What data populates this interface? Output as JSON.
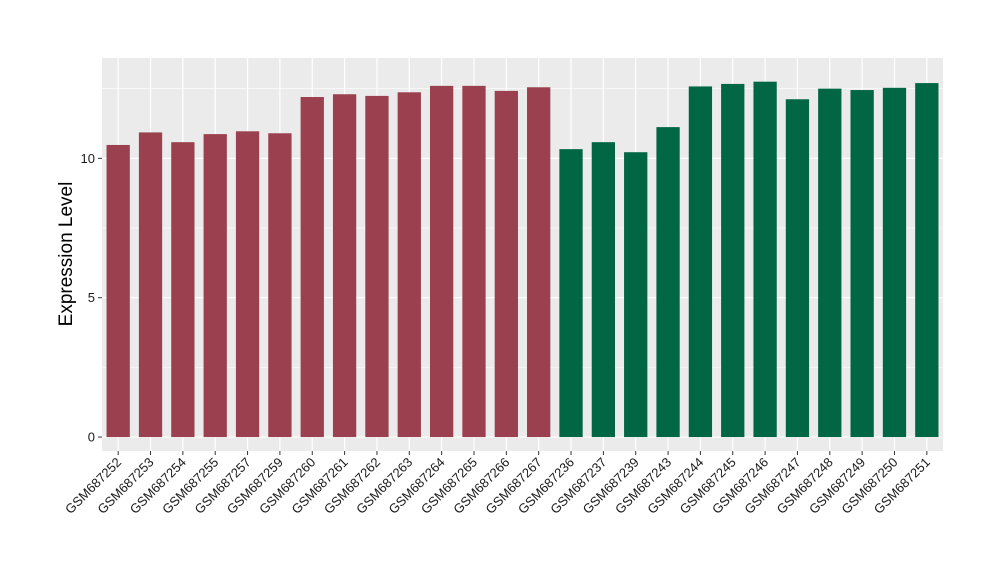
{
  "chart_data": {
    "type": "bar",
    "title": "",
    "xlabel": "",
    "ylabel": "Expression Level",
    "ylim": [
      -0.5,
      13.6
    ],
    "yticks": [
      0,
      5,
      10
    ],
    "grid": true,
    "legend": "none",
    "categories": [
      "GSM687252",
      "GSM687253",
      "GSM687254",
      "GSM687255",
      "GSM687257",
      "GSM687259",
      "GSM687260",
      "GSM687261",
      "GSM687262",
      "GSM687263",
      "GSM687264",
      "GSM687265",
      "GSM687266",
      "GSM687267",
      "GSM687236",
      "GSM687237",
      "GSM687239",
      "GSM687243",
      "GSM687244",
      "GSM687245",
      "GSM687246",
      "GSM687247",
      "GSM687248",
      "GSM687249",
      "GSM687250",
      "GSM687251"
    ],
    "values": [
      10.48,
      10.93,
      10.58,
      10.87,
      10.97,
      10.9,
      12.2,
      12.3,
      12.24,
      12.37,
      12.6,
      12.6,
      12.42,
      12.55,
      10.33,
      10.58,
      10.22,
      11.12,
      12.58,
      12.67,
      12.75,
      12.12,
      12.5,
      12.45,
      12.53,
      12.7
    ],
    "bar_colors": [
      "#9a404f",
      "#9a404f",
      "#9a404f",
      "#9a404f",
      "#9a404f",
      "#9a404f",
      "#9a404f",
      "#9a404f",
      "#9a404f",
      "#9a404f",
      "#9a404f",
      "#9a404f",
      "#9a404f",
      "#9a404f",
      "#006644",
      "#006644",
      "#006644",
      "#006644",
      "#006644",
      "#006644",
      "#006644",
      "#006644",
      "#006644",
      "#006644",
      "#006644",
      "#006644"
    ],
    "panel_color": "#ebebeb",
    "grid_color": "#ffffff"
  }
}
